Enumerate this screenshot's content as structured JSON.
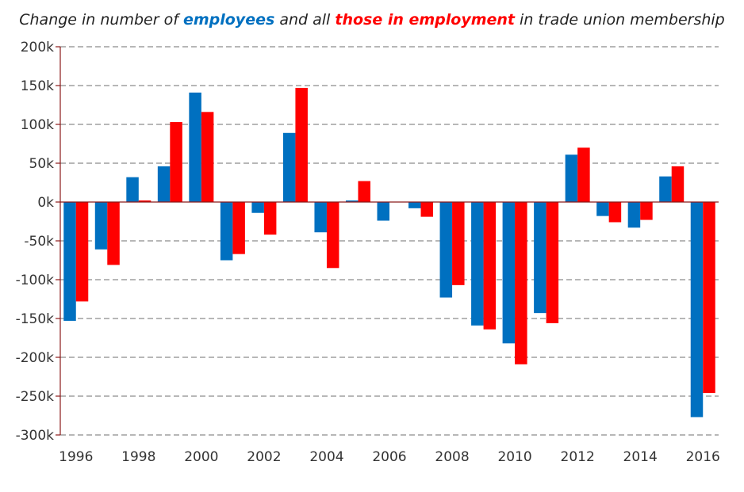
{
  "chart_data": {
    "type": "bar",
    "title": {
      "part1": "Change in number of ",
      "series1_word": "employees",
      "part2": " and all ",
      "series2_word": "those in employment",
      "part3": " in trade union membership"
    },
    "x": [
      1996,
      1997,
      1998,
      1999,
      2000,
      2001,
      2002,
      2003,
      2004,
      2005,
      2006,
      2007,
      2008,
      2009,
      2010,
      2011,
      2012,
      2013,
      2014,
      2015,
      2016
    ],
    "x_tick_labels": [
      "1996",
      "1998",
      "2000",
      "2002",
      "2004",
      "2006",
      "2008",
      "2010",
      "2012",
      "2014",
      "2016"
    ],
    "y_tick_labels": [
      "200k",
      "150k",
      "100k",
      "50k",
      "0k",
      "-50k",
      "-100k",
      "-150k",
      "-200k",
      "-250k",
      "-300k"
    ],
    "y_ticks": [
      200000,
      150000,
      100000,
      50000,
      0,
      -50000,
      -100000,
      -150000,
      -200000,
      -250000,
      -300000
    ],
    "ylim": [
      -300000,
      200000
    ],
    "grid": true,
    "series": [
      {
        "name": "employees",
        "color": "#0070c0",
        "values": [
          -153000,
          -61000,
          32000,
          46000,
          141000,
          -75000,
          -14000,
          89000,
          -39000,
          2000,
          -24000,
          -8000,
          -123000,
          -159000,
          -182000,
          -143000,
          61000,
          -18000,
          -33000,
          33000,
          -277000
        ]
      },
      {
        "name": "those in employment",
        "color": "#ff0000",
        "values": [
          -128000,
          -81000,
          2000,
          103000,
          116000,
          -67000,
          -42000,
          147000,
          -85000,
          27000,
          0,
          -19000,
          -107000,
          -164000,
          -209000,
          -156000,
          70000,
          -26000,
          -23000,
          46000,
          -246000
        ]
      }
    ]
  }
}
